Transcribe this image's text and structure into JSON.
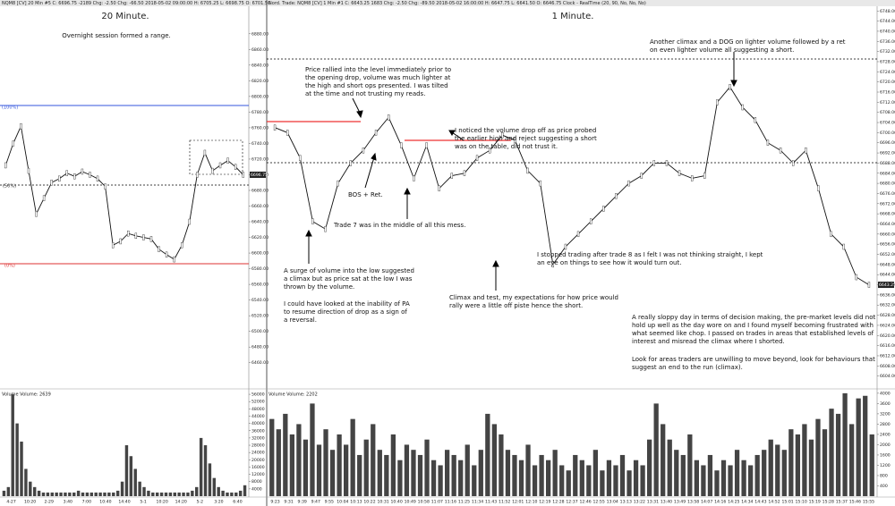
{
  "panels": [
    {
      "header": "NQM8 [CV]  20 Min  #5  C: 6696.75  -2189  Chg: -2.50  Chg: -66.50  2018-05-02 09:00:00  H: 6705.25  L: 6698.75  O: 6701.50",
      "title": "20 Minute.",
      "price": {
        "values": [
          6712,
          6740,
          6762,
          6705,
          6650,
          6670,
          6690,
          6695,
          6702,
          6698,
          6704,
          6700,
          6695,
          6685,
          6610,
          6615,
          6625,
          6622,
          6620,
          6618,
          6605,
          6598,
          6592,
          6610,
          6640,
          6700,
          6728,
          6705,
          6712,
          6718,
          6710,
          6700
        ],
        "ylim": [
          6430,
          6914
        ],
        "yticks": [
          {
            "value": 6880,
            "label": "6880.00"
          },
          {
            "value": 6860,
            "label": "6860.00"
          },
          {
            "value": 6840,
            "label": "6840.00"
          },
          {
            "value": 6820,
            "label": "6820.00"
          },
          {
            "value": 6800,
            "label": "6800.00"
          },
          {
            "value": 6780,
            "label": "6780.00"
          },
          {
            "value": 6760,
            "label": "6760.00"
          },
          {
            "value": 6740,
            "label": "6740.00"
          },
          {
            "value": 6720,
            "label": "6720.00"
          },
          {
            "value": 6700,
            "label": "6700.00"
          },
          {
            "value": 6680,
            "label": "6680.00"
          },
          {
            "value": 6660,
            "label": "6660.00"
          },
          {
            "value": 6640,
            "label": "6640.00"
          },
          {
            "value": 6620,
            "label": "6620.00"
          },
          {
            "value": 6600,
            "label": "6600.00"
          },
          {
            "value": 6580,
            "label": "6580.00"
          },
          {
            "value": 6560,
            "label": "6560.00"
          },
          {
            "value": 6540,
            "label": "6540.00"
          },
          {
            "value": 6520,
            "label": "6520.00"
          },
          {
            "value": 6500,
            "label": "6500.00"
          },
          {
            "value": 6480,
            "label": "6480.00"
          },
          {
            "value": 6460,
            "label": "6460.00"
          }
        ],
        "last_label": "6696.75"
      },
      "levels": [
        "(100%)",
        "(50%)",
        "(0%)"
      ],
      "volume": {
        "label": "Volume  Volume: 2639",
        "values": [
          3000,
          5000,
          56000,
          40000,
          30000,
          15000,
          8000,
          5000,
          3000,
          2000,
          2000,
          2000,
          2000,
          2000,
          2000,
          2000,
          2000,
          3000,
          2000,
          2000,
          2000,
          2000,
          2000,
          2000,
          2000,
          2000,
          3000,
          8000,
          28000,
          22000,
          15000,
          8000,
          5000,
          3000,
          2000,
          2000,
          2000,
          2000,
          2000,
          2000,
          2000,
          2000,
          2000,
          3000,
          5000,
          32000,
          28000,
          18000,
          10000,
          5000,
          3000,
          2000,
          2000,
          2000,
          3000,
          6000
        ],
        "ylim": [
          0,
          58000
        ],
        "yticks": [
          56000,
          52000,
          48000,
          44000,
          40000,
          36000,
          32000,
          28000,
          24000,
          20000,
          16000,
          12000,
          8000,
          4000
        ]
      },
      "times": [
        "4-27",
        "10:20",
        "2-29",
        "3:40",
        "7:00",
        "10:40",
        "14:40",
        "5-1",
        "10:20",
        "14:20",
        "5-2",
        "3:20",
        "6:40"
      ],
      "notes": [
        {
          "lines": [
            "Overnight session formed a range."
          ]
        }
      ]
    },
    {
      "header": "Nord. Trade: NQM8 [CV]  1 Min  #1  C: 6643.25  1683  Chg: -2.50  Chg: -89.50  2018-05-02 16:00:00  H: 6647.75  L: 6641.50  O: 6646.75  Clock - RealTime  (20, 90, No, No, No)",
      "title": "1 Minute.",
      "price": {
        "values": [
          6702,
          6700,
          6690,
          6665,
          6662,
          6680,
          6688,
          6693,
          6700,
          6706,
          6695,
          6682,
          6695,
          6678,
          6683,
          6684,
          6690,
          6693,
          6699,
          6697,
          6685,
          6680,
          6648,
          6655,
          6660,
          6665,
          6670,
          6675,
          6680,
          6683,
          6688,
          6688,
          6684,
          6682,
          6683,
          6712,
          6718,
          6710,
          6705,
          6696,
          6693,
          6688,
          6693,
          6678,
          6660,
          6655,
          6643,
          6640
        ],
        "ylim": [
          6600,
          6749.5
        ],
        "yticks": [
          {
            "value": 6748,
            "label": "6748.00"
          },
          {
            "value": 6744,
            "label": "6744.00"
          },
          {
            "value": 6740,
            "label": "6740.00"
          },
          {
            "value": 6736,
            "label": "6736.00"
          },
          {
            "value": 6732,
            "label": "6732.00"
          },
          {
            "value": 6728,
            "label": "6728.00"
          },
          {
            "value": 6724,
            "label": "6724.00"
          },
          {
            "value": 6720,
            "label": "6720.00"
          },
          {
            "value": 6716,
            "label": "6716.00"
          },
          {
            "value": 6712,
            "label": "6712.00"
          },
          {
            "value": 6708,
            "label": "6708.00"
          },
          {
            "value": 6704,
            "label": "6704.00"
          },
          {
            "value": 6700,
            "label": "6700.00"
          },
          {
            "value": 6696,
            "label": "6696.00"
          },
          {
            "value": 6692,
            "label": "6692.00"
          },
          {
            "value": 6688,
            "label": "6688.00"
          },
          {
            "value": 6684,
            "label": "6684.00"
          },
          {
            "value": 6680,
            "label": "6680.00"
          },
          {
            "value": 6676,
            "label": "6676.00"
          },
          {
            "value": 6672,
            "label": "6672.00"
          },
          {
            "value": 6668,
            "label": "6668.00"
          },
          {
            "value": 6664,
            "label": "6664.00"
          },
          {
            "value": 6660,
            "label": "6660.00"
          },
          {
            "value": 6656,
            "label": "6656.00"
          },
          {
            "value": 6652,
            "label": "6652.00"
          },
          {
            "value": 6648,
            "label": "6648.00"
          },
          {
            "value": 6644,
            "label": "6644.00"
          },
          {
            "value": 6640,
            "label": "6640.00"
          },
          {
            "value": 6636,
            "label": "6636.00"
          },
          {
            "value": 6632,
            "label": "6632.00"
          },
          {
            "value": 6628,
            "label": "6628.00"
          },
          {
            "value": 6624,
            "label": "6624.00"
          },
          {
            "value": 6620,
            "label": "6620.00"
          },
          {
            "value": 6616,
            "label": "6616.00"
          },
          {
            "value": 6612,
            "label": "6612.00"
          },
          {
            "value": 6608,
            "label": "6608.00"
          },
          {
            "value": 6604,
            "label": "6604.00"
          }
        ],
        "last_label": "6643.25"
      },
      "levels": [],
      "volume": {
        "label": "Volume  Volume: 2202",
        "values": [
          3000,
          2600,
          3200,
          2400,
          2800,
          2200,
          3600,
          2000,
          2600,
          1800,
          2400,
          2000,
          3000,
          1600,
          2200,
          2800,
          1800,
          1600,
          2400,
          1400,
          2000,
          1800,
          1600,
          2200,
          1400,
          1200,
          1800,
          1600,
          1400,
          2000,
          1200,
          1800,
          3200,
          2800,
          2400,
          1800,
          1600,
          1400,
          2000,
          1200,
          1600,
          1400,
          1800,
          1200,
          1000,
          1600,
          1400,
          1200,
          1800,
          1000,
          1400,
          1200,
          1600,
          1000,
          1400,
          1200,
          2200,
          3600,
          2800,
          2200,
          1800,
          1600,
          2400,
          1400,
          1200,
          1600,
          1000,
          1400,
          1200,
          1800,
          1400,
          1200,
          1600,
          1800,
          2200,
          2000,
          1800,
          2600,
          2400,
          2800,
          2200,
          3000,
          2600,
          3400,
          3200,
          4000,
          2800,
          3800,
          3900,
          2400
        ],
        "ylim": [
          0,
          4100
        ],
        "yticks": [
          4000,
          3600,
          3200,
          2800,
          2400,
          2000,
          1600,
          1200,
          800,
          400
        ]
      },
      "times": [
        "9:23",
        "9:31",
        "9:39",
        "9:47",
        "9:55",
        "10:04",
        "10:13",
        "10:22",
        "10:31",
        "10:40",
        "10:49",
        "10:58",
        "11:07",
        "11:16",
        "11:25",
        "11:34",
        "11:43",
        "11:52",
        "12:01",
        "12:10",
        "12:19",
        "12:28",
        "12:37",
        "12:46",
        "12:55",
        "13:04",
        "13:13",
        "13:22",
        "13:31",
        "13:40",
        "13:49",
        "13:58",
        "14:07",
        "14:16",
        "14:25",
        "14:34",
        "14:43",
        "14:52",
        "15:01",
        "15:10",
        "15:19",
        "15:28",
        "15:37",
        "15:46",
        "15:55"
      ],
      "notes": [
        {
          "lines": [
            "Price rallied into the level immediately prior to",
            "the opening drop, volume was much lighter at",
            "the high and short ops presented.  I was tilted",
            "at the time and not trusting my reads."
          ]
        },
        {
          "lines": [
            "I noticed the volume drop off as price probed",
            "the earlier high and reject suggesting a short",
            "was on the table, did not trust it."
          ]
        },
        {
          "lines": [
            "Another climax and a DOG on lighter volume followed by a ret",
            "on even lighter volume all suggesting a short."
          ]
        },
        {
          "lines": [
            "BOS + Ret."
          ]
        },
        {
          "lines": [
            "Trade 7 was in the middle of all this mess."
          ]
        },
        {
          "lines": [
            "A surge of volume into the low suggested",
            "a climax but as price sat at the low I was",
            "thrown by the volume."
          ]
        },
        {
          "lines": [
            "I could have looked at the inability of PA",
            "to resume direction of drop as a sign of",
            "a reversal."
          ]
        },
        {
          "lines": [
            "I stopped trading after trade 8 as I felt I was not thinking straight, I kept",
            "an eye on things to see how it would turn out."
          ]
        },
        {
          "lines": [
            "Climax and test, my expectations for how price would",
            "rally were a little off piste hence the short."
          ]
        },
        {
          "lines": [
            "A really sloppy day in terms of decision making, the pre-market levels did not",
            "hold up well as the day wore on and I found myself becoming frustrated with",
            "what seemed like chop.  I passed on trades in areas that established levels of",
            "interest and misread the climax where I shorted."
          ]
        },
        {
          "lines": [
            "Look for areas traders are unwilling to move beyond, look for behaviours that",
            "suggest an end to the run (climax)."
          ]
        }
      ]
    }
  ]
}
